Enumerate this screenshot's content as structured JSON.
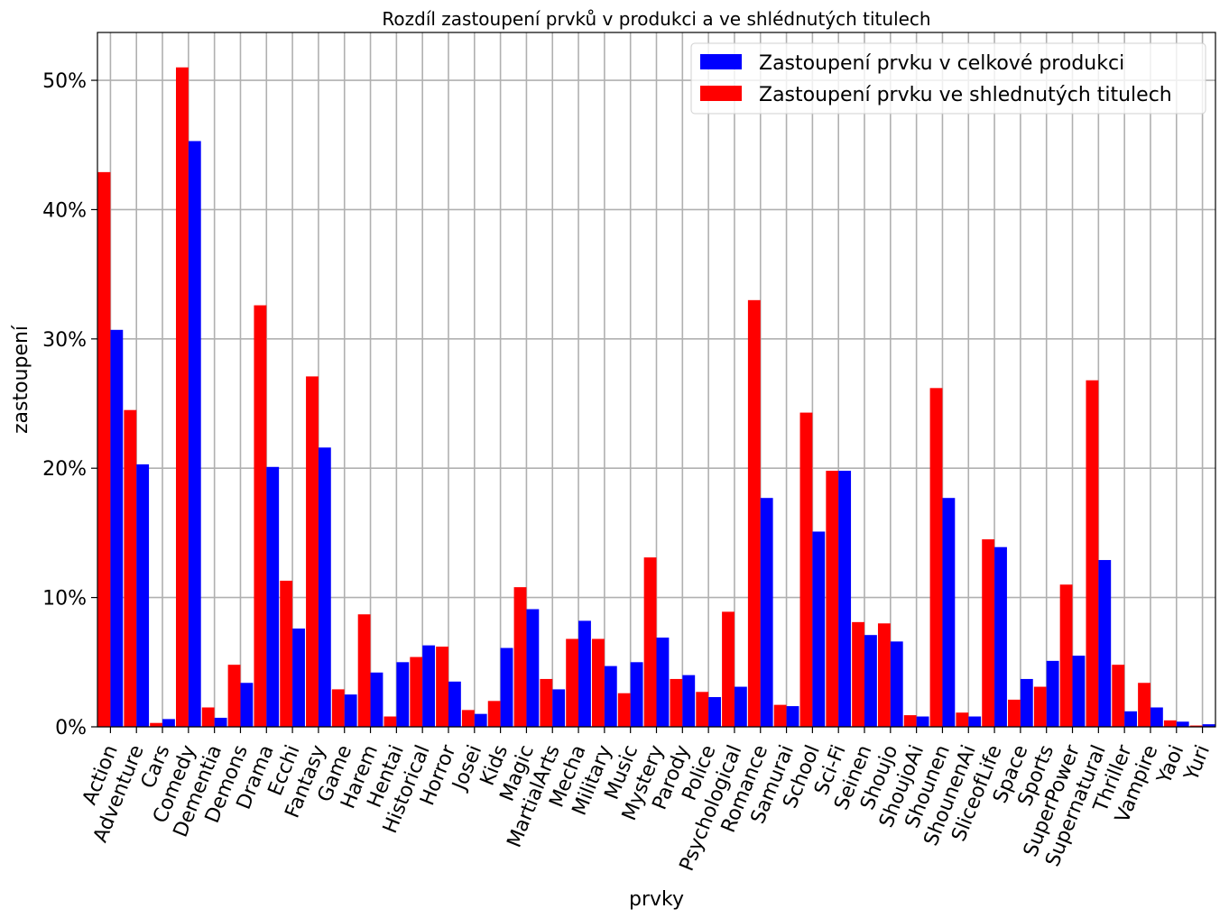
{
  "chart_data": {
    "type": "bar",
    "title": "Rozdíl zastoupení prvků v produkci a ve shlédnutých titulech",
    "xlabel": "prvky",
    "ylabel": "zastoupení",
    "ylim": [
      0,
      53.7
    ],
    "yticks": [
      0,
      10,
      20,
      30,
      40,
      50
    ],
    "ytick_labels": [
      "0%",
      "10%",
      "20%",
      "30%",
      "40%",
      "50%"
    ],
    "grid": true,
    "legend_position": "top-right",
    "categories": [
      "Action",
      "Adventure",
      "Cars",
      "Comedy",
      "Dementia",
      "Demons",
      "Drama",
      "Ecchi",
      "Fantasy",
      "Game",
      "Harem",
      "Hentai",
      "Historical",
      "Horror",
      "Josei",
      "Kids",
      "Magic",
      "MartialArts",
      "Mecha",
      "Military",
      "Music",
      "Mystery",
      "Parody",
      "Police",
      "Psychological",
      "Romance",
      "Samurai",
      "School",
      "Sci-Fi",
      "Seinen",
      "Shoujo",
      "ShoujoAi",
      "Shounen",
      "ShounenAi",
      "SliceofLife",
      "Space",
      "Sports",
      "SuperPower",
      "Supernatural",
      "Thriller",
      "Vampire",
      "Yaoi",
      "Yuri"
    ],
    "series": [
      {
        "name": "Zastoupení prvku ve shlednutých titulech",
        "color": "#ff0000",
        "values": [
          42.9,
          24.5,
          0.3,
          51.0,
          1.5,
          4.8,
          32.6,
          11.3,
          27.1,
          2.9,
          8.7,
          0.8,
          5.4,
          6.2,
          1.3,
          2.0,
          10.8,
          3.7,
          6.8,
          6.8,
          2.6,
          13.1,
          3.7,
          2.7,
          8.9,
          33.0,
          1.7,
          24.3,
          19.8,
          8.1,
          8.0,
          0.9,
          26.2,
          1.1,
          14.5,
          2.1,
          3.1,
          11.0,
          26.8,
          4.8,
          3.4,
          0.5,
          0.1
        ]
      },
      {
        "name": "Zastoupení prvku v celkové produkci",
        "color": "#0000ff",
        "values": [
          30.7,
          20.3,
          0.6,
          45.3,
          0.7,
          3.4,
          20.1,
          7.6,
          21.6,
          2.5,
          4.2,
          5.0,
          6.3,
          3.5,
          1.0,
          6.1,
          9.1,
          2.9,
          8.2,
          4.7,
          5.0,
          6.9,
          4.0,
          2.3,
          3.1,
          17.7,
          1.6,
          15.1,
          19.8,
          7.1,
          6.6,
          0.8,
          17.7,
          0.8,
          13.9,
          3.7,
          5.1,
          5.5,
          12.9,
          1.2,
          1.5,
          0.4,
          0.2
        ]
      }
    ],
    "legend_order": [
      "Zastoupení prvku v celkové produkci",
      "Zastoupení prvku ve shlednutých titulech"
    ]
  }
}
